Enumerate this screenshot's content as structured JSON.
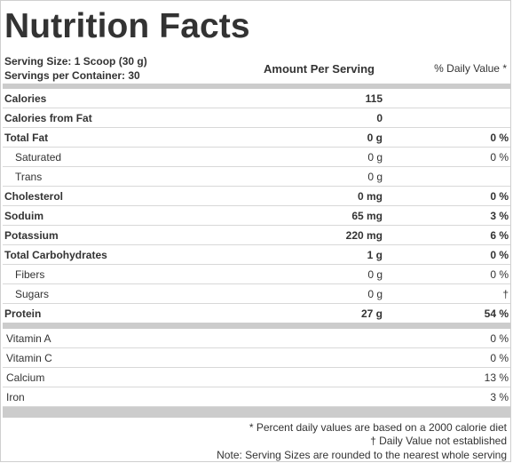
{
  "title": "Nutrition Facts",
  "serving": {
    "size": "Serving Size: 1 Scoop (30 g)",
    "per_container": "Servings per Container: 30"
  },
  "headers": {
    "amount": "Amount Per Serving",
    "daily_value": "% Daily Value *"
  },
  "nutrients": [
    {
      "name": "Calories",
      "amount": "115",
      "dv": "",
      "bold": true
    },
    {
      "name": "Calories from Fat",
      "amount": "0",
      "dv": "",
      "bold": true
    },
    {
      "name": "Total Fat",
      "amount": "0 g",
      "dv": "0 %",
      "bold": true
    },
    {
      "name": "Saturated",
      "amount": "0 g",
      "dv": "0 %",
      "bold": false
    },
    {
      "name": "Trans",
      "amount": "0 g",
      "dv": "",
      "bold": false
    },
    {
      "name": "Cholesterol",
      "amount": "0 mg",
      "dv": "0 %",
      "bold": true
    },
    {
      "name": "Soduim",
      "amount": "65 mg",
      "dv": "3 %",
      "bold": true
    },
    {
      "name": "Potassium",
      "amount": "220 mg",
      "dv": "6 %",
      "bold": true
    },
    {
      "name": "Total Carbohydrates",
      "amount": "1 g",
      "dv": "0 %",
      "bold": true
    },
    {
      "name": "Fibers",
      "amount": "0 g",
      "dv": "0 %",
      "bold": false
    },
    {
      "name": "Sugars",
      "amount": "0 g",
      "dv": "†",
      "bold": false
    },
    {
      "name": "Protein",
      "amount": "27 g",
      "dv": "54 %",
      "bold": true
    }
  ],
  "vitamins": [
    {
      "name": "Vitamin A",
      "dv": "0 %"
    },
    {
      "name": "Vitamin C",
      "dv": "0 %"
    },
    {
      "name": "Calcium",
      "dv": "13 %"
    },
    {
      "name": "Iron",
      "dv": "3 %"
    }
  ],
  "footnotes": {
    "daily_values": "* Percent daily values are based on a 2000 calorie diet",
    "dagger": "† Daily Value not established",
    "rounding": "Note: Serving Sizes are rounded to the nearest whole serving"
  }
}
